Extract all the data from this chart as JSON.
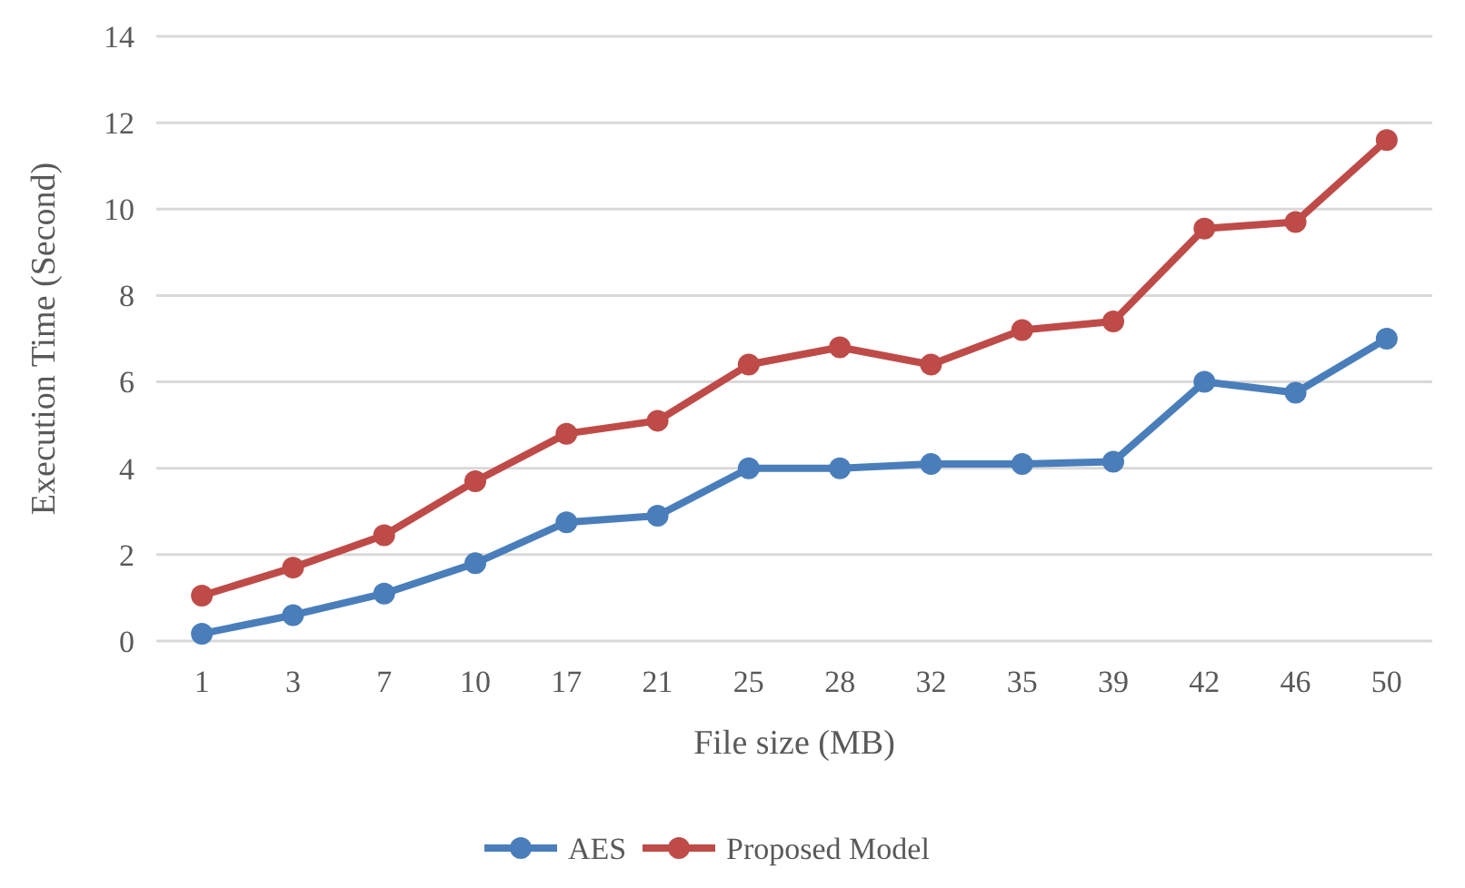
{
  "chart_data": {
    "type": "line",
    "xlabel": "File size (MB)",
    "ylabel": "Execution Time (Second)",
    "categories": [
      "1",
      "3",
      "7",
      "10",
      "17",
      "21",
      "25",
      "28",
      "32",
      "35",
      "39",
      "42",
      "46",
      "50"
    ],
    "series": [
      {
        "name": "AES",
        "color": "#4a7ebb",
        "values": [
          0.17,
          0.6,
          1.1,
          1.8,
          2.75,
          2.9,
          4.0,
          4.0,
          4.1,
          4.1,
          4.15,
          6.0,
          5.75,
          7.0
        ]
      },
      {
        "name": "Proposed Model",
        "color": "#be4b48",
        "values": [
          1.05,
          1.7,
          2.45,
          3.7,
          4.8,
          5.1,
          6.4,
          6.8,
          6.4,
          7.2,
          7.4,
          9.55,
          9.7,
          11.6
        ]
      }
    ],
    "ylim": [
      0,
      14
    ],
    "yticks": [
      0,
      2,
      4,
      6,
      8,
      10,
      12,
      14
    ],
    "grid": "y",
    "legend": "bottom",
    "marker": "circle",
    "line_style": "solid"
  }
}
